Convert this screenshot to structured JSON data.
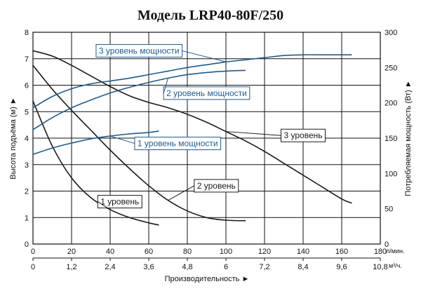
{
  "chart_data": {
    "type": "line",
    "title": "Модель LRP40-80F/250",
    "xlabel": "Производительность ►",
    "ylabel_left": "Высота подъёма (м) ►",
    "ylabel_right": "Потребляемая мощность (Вт) ►",
    "x_ticks_primary": [
      "0",
      "20",
      "40",
      "60",
      "80",
      "100",
      "120",
      "140",
      "160",
      "180"
    ],
    "x_unit_primary": "л/мин.",
    "x_ticks_secondary": [
      "0",
      "1,2",
      "2,4",
      "3,6",
      "4,8",
      "6",
      "7,2",
      "8,4",
      "9,6",
      "10,8"
    ],
    "x_unit_secondary": "м³/ч.",
    "y_left_ticks": [
      "0",
      "1",
      "2",
      "3",
      "4",
      "5",
      "6",
      "7",
      "8"
    ],
    "y_right_ticks": [
      "0",
      "50",
      "100",
      "150",
      "200",
      "250",
      "300"
    ],
    "xlim": [
      0,
      180
    ],
    "ylim_left": [
      0,
      8
    ],
    "ylim_right": [
      0,
      300
    ],
    "grid": true,
    "colors": {
      "head_curve": "#1a1a1a",
      "power_curve": "#1f5a8c",
      "grid": "#111111"
    },
    "head_series": [
      {
        "name": "1 уровень",
        "axis": "left",
        "x": [
          0,
          10,
          20,
          30,
          40,
          50,
          60,
          65
        ],
        "y": [
          5.4,
          3.7,
          2.5,
          1.75,
          1.3,
          1.0,
          0.8,
          0.72
        ],
        "label_at": [
          45,
          1.6
        ]
      },
      {
        "name": "2 уровень",
        "axis": "left",
        "x": [
          0,
          10,
          20,
          30,
          40,
          50,
          60,
          70,
          80,
          90,
          100,
          110
        ],
        "y": [
          6.75,
          5.85,
          5.05,
          4.3,
          3.55,
          2.85,
          2.2,
          1.65,
          1.25,
          1.0,
          0.9,
          0.88
        ],
        "label_at": [
          95,
          2.2
        ]
      },
      {
        "name": "3 уровень",
        "axis": "left",
        "x": [
          0,
          10,
          20,
          30,
          40,
          50,
          60,
          70,
          80,
          90,
          100,
          110,
          120,
          130,
          140,
          150,
          160,
          165
        ],
        "y": [
          7.3,
          7.1,
          6.75,
          6.35,
          5.95,
          5.6,
          5.35,
          5.15,
          4.9,
          4.6,
          4.25,
          3.9,
          3.5,
          3.05,
          2.6,
          2.15,
          1.7,
          1.55
        ],
        "label_at": [
          140,
          4.1
        ]
      }
    ],
    "power_series": [
      {
        "name": "1 уровень мощности",
        "axis": "right",
        "x": [
          0,
          10,
          20,
          30,
          40,
          50,
          60,
          65
        ],
        "y": [
          127,
          136,
          143,
          149,
          153,
          156,
          158,
          160
        ],
        "label_at": [
          75,
          3.8
        ]
      },
      {
        "name": "2 уровень мощности",
        "axis": "right",
        "x": [
          0,
          10,
          20,
          30,
          40,
          50,
          60,
          70,
          80,
          90,
          100,
          110
        ],
        "y": [
          162,
          179,
          193,
          204,
          214,
          222,
          229,
          235,
          240,
          243,
          245,
          246
        ],
        "label_at": [
          90,
          5.7
        ]
      },
      {
        "name": "3 уровень мощности",
        "axis": "right",
        "x": [
          0,
          10,
          20,
          30,
          40,
          50,
          60,
          70,
          80,
          90,
          100,
          110,
          120,
          130,
          140,
          150,
          160,
          165
        ],
        "y": [
          193,
          209,
          220,
          227,
          231,
          235,
          240,
          245,
          250,
          254,
          258,
          261,
          264,
          267,
          268,
          268,
          268,
          268
        ],
        "label_at": [
          55,
          7.3
        ]
      }
    ]
  }
}
